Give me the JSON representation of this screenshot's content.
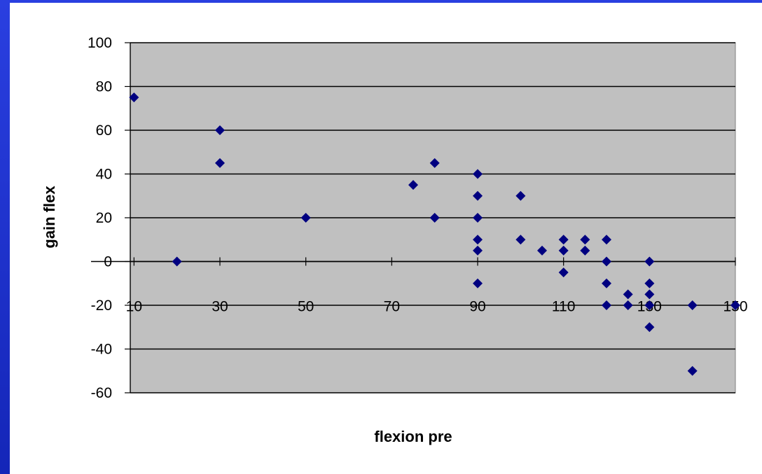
{
  "colors": {
    "background_frame": "#1c2fc8",
    "plot_area": "#c0c0c0",
    "marker": "#000080",
    "gridline": "#000000"
  },
  "chart_data": {
    "type": "scatter",
    "xlabel": "flexion pre",
    "ylabel": "gain flex",
    "xlim": [
      0,
      150
    ],
    "ylim": [
      -60,
      100
    ],
    "x_ticks": [
      10,
      30,
      50,
      70,
      90,
      110,
      130,
      150
    ],
    "y_ticks": [
      100,
      80,
      60,
      40,
      20,
      0,
      -20,
      -40,
      -60
    ],
    "grid": "horizontal",
    "legend": "none",
    "marker": "diamond",
    "points": [
      {
        "x": 10,
        "y": 75
      },
      {
        "x": 20,
        "y": 0
      },
      {
        "x": 30,
        "y": 60
      },
      {
        "x": 30,
        "y": 45
      },
      {
        "x": 50,
        "y": 20
      },
      {
        "x": 75,
        "y": 35
      },
      {
        "x": 80,
        "y": 45
      },
      {
        "x": 80,
        "y": 20
      },
      {
        "x": 90,
        "y": 40
      },
      {
        "x": 90,
        "y": 30
      },
      {
        "x": 90,
        "y": 20
      },
      {
        "x": 90,
        "y": 10
      },
      {
        "x": 90,
        "y": 5
      },
      {
        "x": 90,
        "y": -10
      },
      {
        "x": 100,
        "y": 30
      },
      {
        "x": 100,
        "y": 10
      },
      {
        "x": 105,
        "y": 5
      },
      {
        "x": 110,
        "y": 10
      },
      {
        "x": 110,
        "y": 5
      },
      {
        "x": 110,
        "y": -5
      },
      {
        "x": 115,
        "y": 10
      },
      {
        "x": 115,
        "y": 5
      },
      {
        "x": 120,
        "y": 10
      },
      {
        "x": 120,
        "y": 0
      },
      {
        "x": 120,
        "y": -10
      },
      {
        "x": 120,
        "y": -20
      },
      {
        "x": 125,
        "y": -15
      },
      {
        "x": 125,
        "y": -20
      },
      {
        "x": 130,
        "y": 0
      },
      {
        "x": 130,
        "y": -10
      },
      {
        "x": 130,
        "y": -15
      },
      {
        "x": 130,
        "y": -20
      },
      {
        "x": 130,
        "y": -30
      },
      {
        "x": 140,
        "y": -20
      },
      {
        "x": 140,
        "y": -50
      },
      {
        "x": 150,
        "y": -20
      }
    ]
  }
}
